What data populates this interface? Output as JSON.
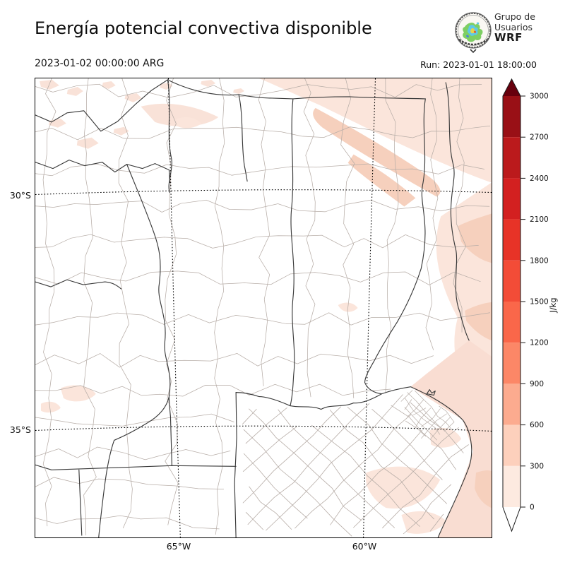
{
  "header": {
    "title": "Energía potencial convectiva disponible",
    "logo": {
      "line1": "Grupo de",
      "line2": "Usuarios",
      "line3": "WRF"
    }
  },
  "subheader": {
    "valid_time": "2023-01-02 00:00:00 ARG",
    "run_time": "Run: 2023-01-01 18:00:00"
  },
  "map": {
    "y_tick_labels": [
      "30°S",
      "35°S"
    ],
    "x_tick_labels": [
      "65°W",
      "60°W"
    ]
  },
  "colorbar": {
    "unit": "J/kg",
    "tick_labels": [
      "3000",
      "2700",
      "2400",
      "2100",
      "1800",
      "1500",
      "1200",
      "900",
      "600",
      "300",
      "0"
    ],
    "segment_colors_top_to_bottom": [
      "#991016",
      "#bb1a1c",
      "#d32020",
      "#e73327",
      "#f34c37",
      "#fa674a",
      "#fc8767",
      "#fcab8f",
      "#fdd0bc",
      "#fdeae0"
    ],
    "over_color": "#67000d",
    "under_color": "#ffffff"
  },
  "colors": {
    "shade_light": "#fbe5db",
    "shade_mid": "#f6d0bd",
    "shade_water": "#f9ddd2",
    "province_line": "#3a3a3a",
    "department_line": "#b7ada7",
    "graticule": "#000000"
  }
}
